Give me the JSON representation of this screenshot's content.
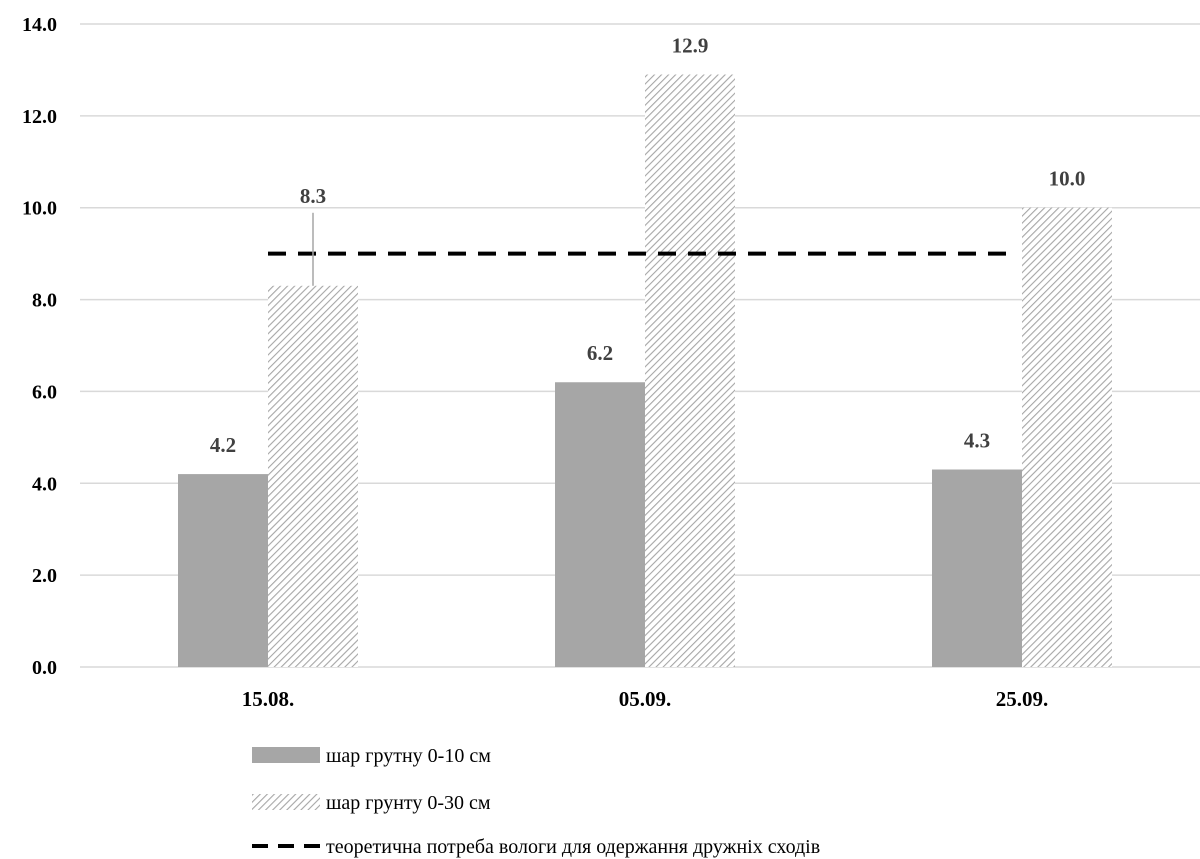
{
  "chart_data": {
    "type": "bar",
    "categories": [
      "15.08.",
      "05.09.",
      "25.09."
    ],
    "series": [
      {
        "name": "шар грутну 0-10 см",
        "values": [
          4.2,
          6.2,
          4.3
        ],
        "labels": [
          "4.2",
          "6.2",
          "4.3"
        ],
        "color": "#a6a6a6",
        "fill": "solid"
      },
      {
        "name": "шар грунту 0-30 см",
        "values": [
          8.3,
          12.9,
          10.0
        ],
        "labels": [
          "8.3",
          "12.9",
          "10.0"
        ],
        "color": "#a6a6a6",
        "fill": "hatched"
      }
    ],
    "reference_line": {
      "name": "теоретична потреба вологи для одержання дружніх сходів",
      "value": 9.0,
      "style": "dashed",
      "color": "#000000"
    },
    "ylim": [
      0,
      14
    ],
    "yticks": [
      "0.0",
      "2.0",
      "4.0",
      "6.0",
      "8.0",
      "10.0",
      "12.0",
      "14.0"
    ],
    "grid": true,
    "legend_position": "bottom",
    "title": "",
    "xlabel": "",
    "ylabel": ""
  }
}
